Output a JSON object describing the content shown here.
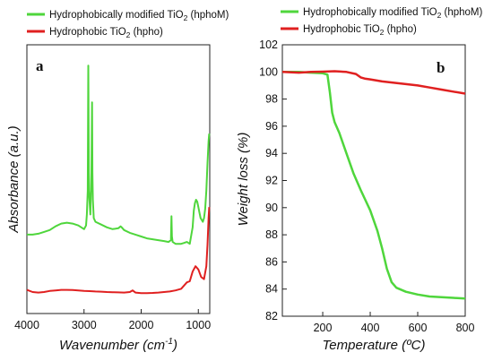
{
  "chart_data": [
    {
      "type": "line",
      "panel_label": "a",
      "xlabel": "Wavenumber (cm",
      "xlabel_sup": "-1",
      "xlabel_tail": ")",
      "ylabel": "Absorbance (a.u.)",
      "xlim": [
        4000,
        800
      ],
      "x_reversed": true,
      "xticks": [
        4000,
        3000,
        2000,
        1000
      ],
      "y_ticks_labeled": false,
      "grid": false,
      "legend_position": "top-left (above plot)",
      "series": [
        {
          "name_main": "Hydrophobically modified TiO",
          "name_sub": "2",
          "name_tail": " (hphoM)",
          "color": "#4fd63c",
          "x": [
            4000,
            3900,
            3800,
            3700,
            3600,
            3500,
            3400,
            3300,
            3200,
            3100,
            3000,
            2965,
            2950,
            2935,
            2925,
            2915,
            2890,
            2870,
            2860,
            2853,
            2845,
            2830,
            2800,
            2700,
            2600,
            2500,
            2400,
            2360,
            2340,
            2300,
            2200,
            2100,
            2000,
            1900,
            1800,
            1700,
            1600,
            1520,
            1480,
            1470,
            1462,
            1450,
            1400,
            1300,
            1250,
            1200,
            1150,
            1100,
            1080,
            1060,
            1040,
            1020,
            1000,
            980,
            960,
            940,
            920,
            900,
            880,
            860,
            840,
            820,
            810
          ],
          "y": [
            0.61,
            0.61,
            0.615,
            0.625,
            0.635,
            0.655,
            0.67,
            0.675,
            0.67,
            0.66,
            0.64,
            0.66,
            0.72,
            0.85,
            1.53,
            0.85,
            0.72,
            0.95,
            1.33,
            0.95,
            0.8,
            0.7,
            0.68,
            0.665,
            0.65,
            0.64,
            0.645,
            0.655,
            0.65,
            0.635,
            0.62,
            0.61,
            0.6,
            0.59,
            0.585,
            0.58,
            0.575,
            0.57,
            0.58,
            0.71,
            0.6,
            0.57,
            0.56,
            0.56,
            0.565,
            0.57,
            0.56,
            0.65,
            0.74,
            0.78,
            0.8,
            0.79,
            0.76,
            0.73,
            0.7,
            0.69,
            0.68,
            0.7,
            0.75,
            0.85,
            1.0,
            1.12,
            1.16
          ]
        },
        {
          "name_main": "Hydrophobic TiO",
          "name_sub": "2",
          "name_tail": " (hpho)",
          "color": "#e02020",
          "x": [
            4000,
            3900,
            3800,
            3700,
            3600,
            3500,
            3400,
            3300,
            3200,
            3100,
            3000,
            2900,
            2800,
            2700,
            2600,
            2500,
            2400,
            2300,
            2200,
            2150,
            2100,
            2000,
            1900,
            1800,
            1700,
            1600,
            1500,
            1400,
            1300,
            1250,
            1200,
            1150,
            1100,
            1050,
            1000,
            950,
            900,
            860,
            840,
            820,
            810
          ],
          "y": [
            0.08,
            0.06,
            0.055,
            0.06,
            0.07,
            0.075,
            0.08,
            0.08,
            0.078,
            0.075,
            0.07,
            0.068,
            0.065,
            0.063,
            0.06,
            0.058,
            0.057,
            0.055,
            0.06,
            0.075,
            0.055,
            0.05,
            0.05,
            0.052,
            0.055,
            0.06,
            0.065,
            0.075,
            0.09,
            0.12,
            0.15,
            0.16,
            0.25,
            0.3,
            0.27,
            0.2,
            0.18,
            0.3,
            0.5,
            0.75,
            0.85
          ]
        }
      ]
    },
    {
      "type": "line",
      "panel_label": "b",
      "xlabel": "Temperature (ºC)",
      "ylabel": "Weight loss (%)",
      "xlim": [
        30,
        800
      ],
      "ylim": [
        82,
        102
      ],
      "xticks": [
        200,
        400,
        600,
        800
      ],
      "yticks": [
        82,
        84,
        86,
        88,
        90,
        92,
        94,
        96,
        98,
        100,
        102
      ],
      "grid": false,
      "legend_position": "top (above plot)",
      "series": [
        {
          "name_main": "Hydrophobically modified TiO",
          "name_sub": "2",
          "name_tail": " (hphoM)",
          "color": "#4fd63c",
          "x": [
            30,
            100,
            150,
            200,
            220,
            230,
            240,
            250,
            270,
            300,
            330,
            360,
            400,
            430,
            450,
            470,
            490,
            510,
            550,
            600,
            650,
            700,
            750,
            800
          ],
          "y": [
            100,
            100,
            99.95,
            99.9,
            99.8,
            98.5,
            97.0,
            96.3,
            95.5,
            94.0,
            92.5,
            91.3,
            89.8,
            88.3,
            87.0,
            85.5,
            84.5,
            84.1,
            83.8,
            83.6,
            83.45,
            83.4,
            83.35,
            83.3
          ]
        },
        {
          "name_main": "Hydrophobic TiO",
          "name_sub": "2",
          "name_tail": " (hpho)",
          "color": "#e02020",
          "x": [
            30,
            100,
            150,
            200,
            250,
            300,
            340,
            360,
            380,
            400,
            450,
            500,
            550,
            600,
            650,
            700,
            750,
            800
          ],
          "y": [
            100,
            99.95,
            100.0,
            100.02,
            100.05,
            100.0,
            99.85,
            99.6,
            99.5,
            99.45,
            99.3,
            99.2,
            99.1,
            99.0,
            98.85,
            98.7,
            98.55,
            98.4
          ]
        }
      ]
    }
  ]
}
